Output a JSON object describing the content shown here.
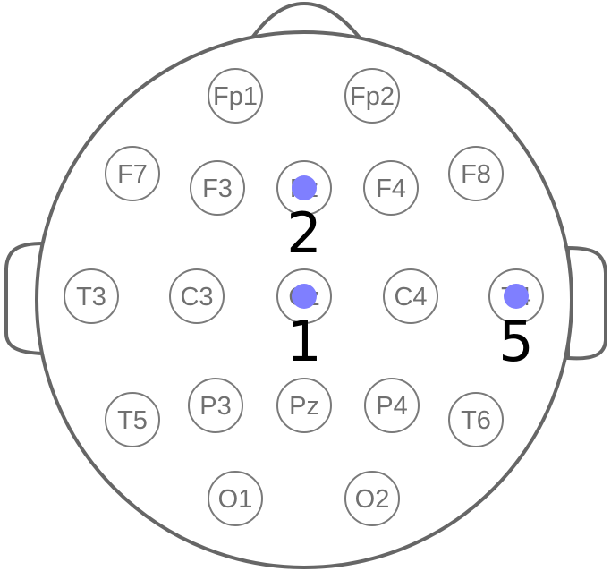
{
  "electrodes": [
    {
      "id": "fp1",
      "label": "Fp1"
    },
    {
      "id": "fp2",
      "label": "Fp2"
    },
    {
      "id": "f7",
      "label": "F7"
    },
    {
      "id": "f3",
      "label": "F3"
    },
    {
      "id": "fz",
      "label": "Fz"
    },
    {
      "id": "f4",
      "label": "F4"
    },
    {
      "id": "f8",
      "label": "F8"
    },
    {
      "id": "t3",
      "label": "T3"
    },
    {
      "id": "c3",
      "label": "C3"
    },
    {
      "id": "cz",
      "label": "Cz"
    },
    {
      "id": "c4",
      "label": "C4"
    },
    {
      "id": "t4",
      "label": "T4"
    },
    {
      "id": "t5",
      "label": "T5"
    },
    {
      "id": "p3",
      "label": "P3"
    },
    {
      "id": "pz",
      "label": "Pz"
    },
    {
      "id": "p4",
      "label": "P4"
    },
    {
      "id": "t6",
      "label": "T6"
    },
    {
      "id": "o1",
      "label": "O1"
    },
    {
      "id": "o2",
      "label": "O2"
    }
  ],
  "markers": [
    {
      "electrode": "fz",
      "number": "2"
    },
    {
      "electrode": "cz",
      "number": "1"
    },
    {
      "electrode": "t4",
      "number": "5"
    }
  ],
  "colors": {
    "outline": "#666666",
    "electrode_ring": "#7a7a7a",
    "electrode_text": "#707070",
    "marker_dot": "#7f7fff",
    "marker_number": "#000000"
  }
}
